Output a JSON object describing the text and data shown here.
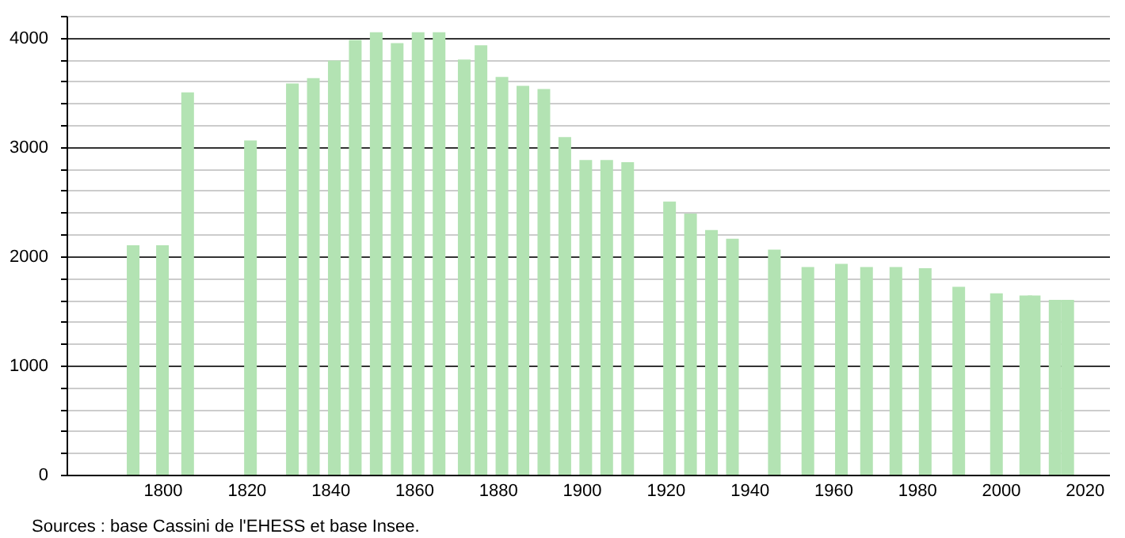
{
  "chart_data": {
    "type": "bar",
    "x": [
      1793,
      1800,
      1806,
      1821,
      1831,
      1836,
      1841,
      1846,
      1851,
      1856,
      1861,
      1866,
      1872,
      1876,
      1881,
      1886,
      1891,
      1896,
      1901,
      1906,
      1911,
      1921,
      1926,
      1931,
      1936,
      1946,
      1954,
      1962,
      1968,
      1975,
      1982,
      1990,
      1999,
      2006,
      2008,
      2013,
      2016
    ],
    "values": [
      2100,
      2100,
      3500,
      3060,
      3580,
      3630,
      3790,
      3980,
      4050,
      3950,
      4050,
      4050,
      3800,
      3930,
      3640,
      3560,
      3530,
      3090,
      2880,
      2880,
      2860,
      2500,
      2390,
      2240,
      2160,
      2060,
      1900,
      1930,
      1900,
      1900,
      1890,
      1720,
      1660,
      1640,
      1640,
      1600,
      1600
    ],
    "color": "#b3e3b3",
    "xlim": [
      1779,
      2024
    ],
    "xticks": [
      1800,
      1820,
      1840,
      1860,
      1880,
      1900,
      1920,
      1940,
      1960,
      1980,
      2000,
      2020
    ],
    "ylim": [
      0,
      4200
    ],
    "yticks": [
      0,
      {
        "value": 200,
        "label": null
      },
      {
        "value": 400,
        "label": null
      },
      {
        "value": 600,
        "label": null
      },
      {
        "value": 800,
        "label": null
      },
      1000,
      {
        "value": 1200,
        "label": null
      },
      {
        "value": 1400,
        "label": null
      },
      {
        "value": 1600,
        "label": null
      },
      {
        "value": 1800,
        "label": null
      },
      2000,
      {
        "value": 2200,
        "label": null
      },
      {
        "value": 2400,
        "label": null
      },
      {
        "value": 2600,
        "label": null
      },
      {
        "value": 2800,
        "label": null
      },
      3000,
      {
        "value": 3200,
        "label": null
      },
      {
        "value": 3400,
        "label": null
      },
      {
        "value": 3600,
        "label": null
      },
      {
        "value": 3800,
        "label": null
      },
      4000,
      {
        "value": 4200,
        "label": null
      }
    ],
    "grid": "y",
    "annotations": [
      "Sources : base Cassini de l'EHESS et base Insee."
    ]
  }
}
